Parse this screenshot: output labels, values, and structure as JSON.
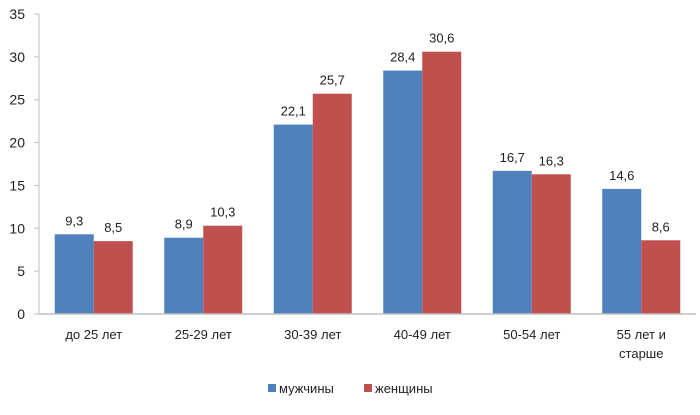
{
  "chart_data": {
    "type": "bar",
    "categories": [
      "до 25 лет",
      "25-29 лет",
      "30-39 лет",
      "40-49 лет",
      "50-54 лет",
      "55 лет и старше"
    ],
    "category_lines": [
      [
        "до 25 лет"
      ],
      [
        "25-29 лет"
      ],
      [
        "30-39 лет"
      ],
      [
        "40-49 лет"
      ],
      [
        "50-54 лет"
      ],
      [
        "55 лет и",
        "старше"
      ]
    ],
    "series": [
      {
        "name": "мужчины",
        "color": "#4f81bd",
        "values": [
          9.3,
          8.9,
          22.1,
          28.4,
          16.7,
          14.6
        ],
        "labels": [
          "9,3",
          "8,9",
          "22,1",
          "28,4",
          "16,7",
          "14,6"
        ]
      },
      {
        "name": "женщины",
        "color": "#c0504d",
        "values": [
          8.5,
          10.3,
          25.7,
          30.6,
          16.3,
          8.6
        ],
        "labels": [
          "8,5",
          "10,3",
          "25,7",
          "30,6",
          "16,3",
          "8,6"
        ]
      }
    ],
    "ylim": [
      0,
      35
    ],
    "yticks": [
      0,
      5,
      10,
      15,
      20,
      25,
      30,
      35
    ],
    "grid": false,
    "legend": "bottom",
    "title": "",
    "xlabel": "",
    "ylabel": ""
  }
}
